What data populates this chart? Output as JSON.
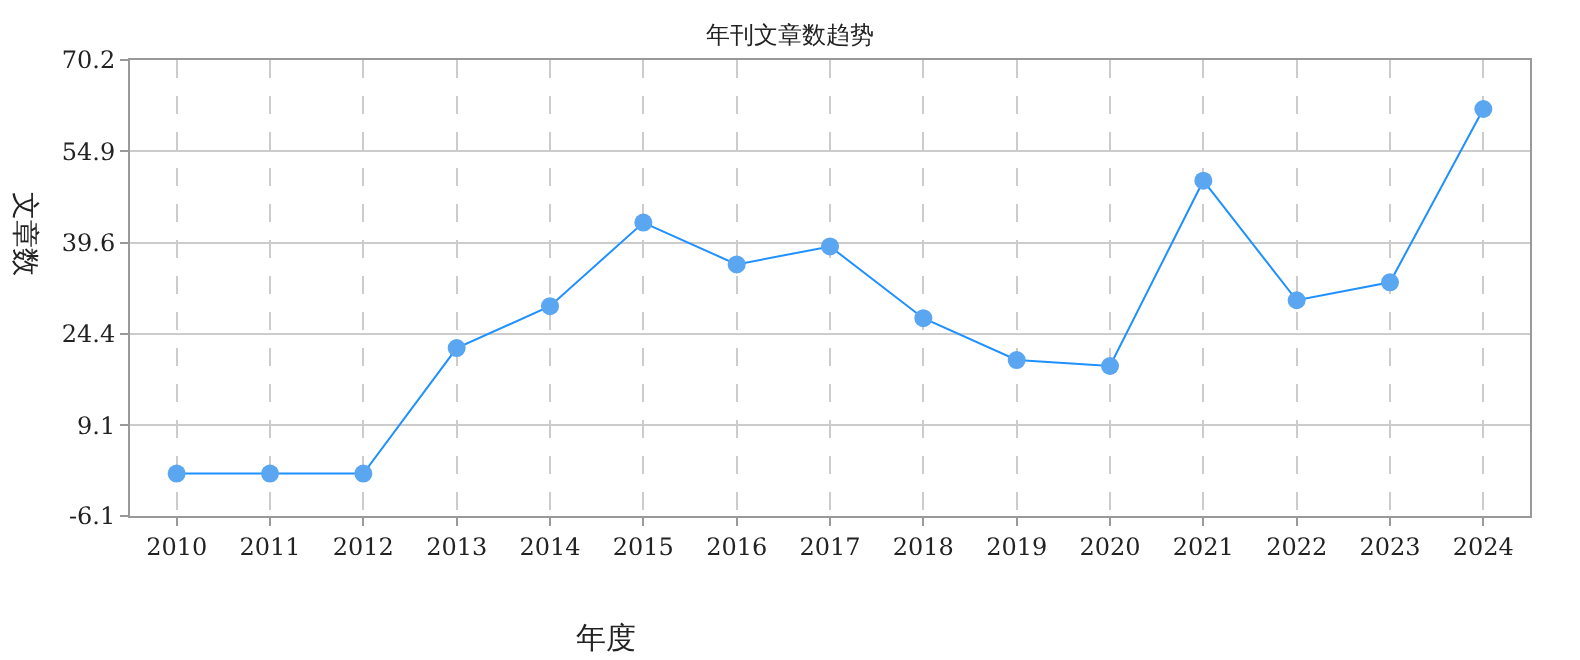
{
  "chart_data": {
    "type": "line",
    "title": "年刊文章数趋势",
    "xlabel": "年度",
    "ylabel": "文章数",
    "categories": [
      "2010",
      "2011",
      "2012",
      "2013",
      "2014",
      "2015",
      "2016",
      "2017",
      "2018",
      "2019",
      "2020",
      "2021",
      "2022",
      "2023",
      "2024"
    ],
    "series": [
      {
        "color": "#1e90ff",
        "values": [
          1,
          1,
          1,
          22,
          29,
          43,
          36,
          39,
          27,
          20,
          19,
          50,
          30,
          33,
          62
        ]
      }
    ],
    "ylim": [
      -6.1,
      70.2
    ],
    "yticks": [
      {
        "value": -6.1,
        "label": "-6.1"
      },
      9.1,
      24.4,
      39.6,
      54.9,
      70.2
    ],
    "grid": true,
    "marker": "circle",
    "line_style": "solid",
    "legend": false
  }
}
